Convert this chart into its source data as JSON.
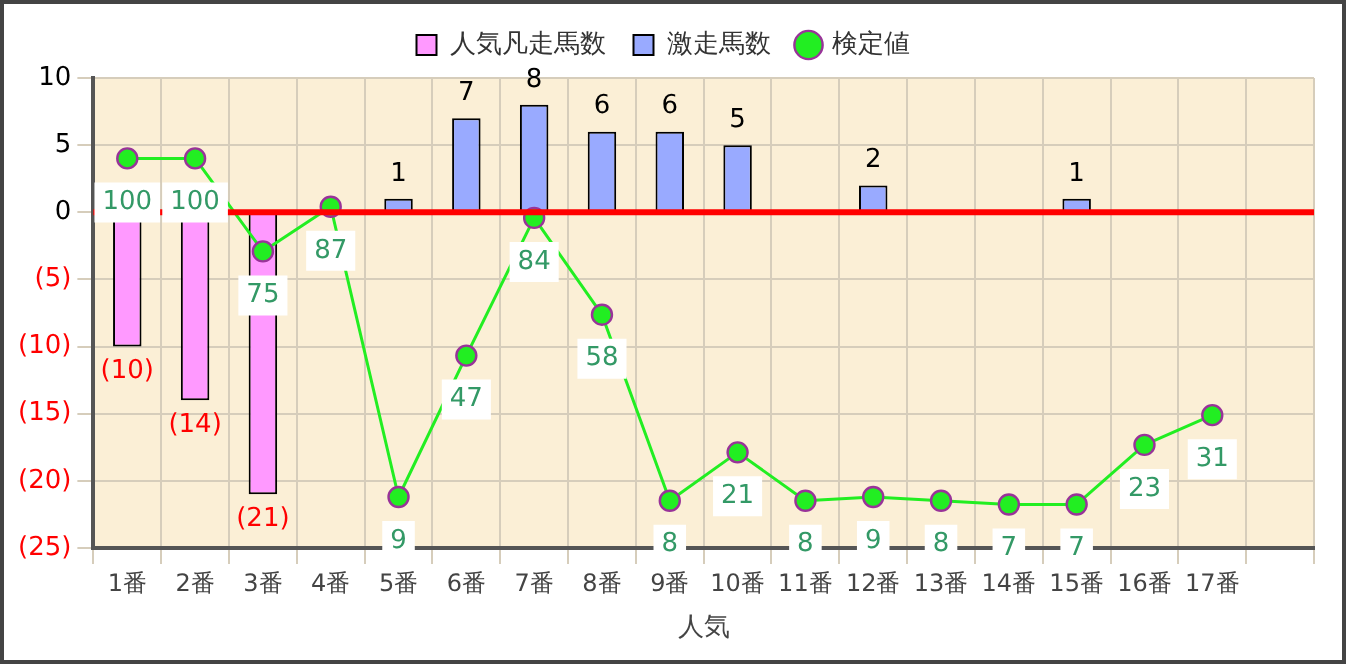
{
  "chart_data": {
    "type": "bar",
    "xlabel": "人気",
    "categories": [
      "1番",
      "2番",
      "3番",
      "4番",
      "5番",
      "6番",
      "7番",
      "8番",
      "9番",
      "10番",
      "11番",
      "12番",
      "13番",
      "14番",
      "15番",
      "16番",
      "17番",
      null
    ],
    "series": [
      {
        "name": "人気凡走馬数",
        "color": "#ff99ff",
        "values": [
          -10,
          -14,
          -21,
          null,
          null,
          null,
          null,
          null,
          null,
          null,
          null,
          null,
          null,
          null,
          null,
          null,
          null,
          null
        ],
        "value_labels": [
          "(10)",
          "(14)",
          "(21)",
          null,
          null,
          null,
          null,
          null,
          null,
          null,
          null,
          null,
          null,
          null,
          null,
          null,
          null,
          null
        ]
      },
      {
        "name": "激走馬数",
        "color": "#99aaff",
        "values": [
          null,
          null,
          null,
          null,
          1,
          7,
          8,
          6,
          6,
          5,
          null,
          2,
          null,
          null,
          1,
          null,
          null,
          null
        ],
        "value_labels": [
          null,
          null,
          null,
          null,
          "1",
          "7",
          "8",
          "6",
          "6",
          "5",
          null,
          "2",
          null,
          null,
          "1",
          null,
          null,
          null
        ]
      },
      {
        "name": "検定値",
        "type": "line",
        "axis": "y2",
        "color": "#22ee22",
        "marker": "circle",
        "values": [
          100,
          100,
          75,
          87,
          9,
          47,
          84,
          58,
          8,
          21,
          8,
          9,
          8,
          7,
          7,
          23,
          31,
          null
        ],
        "value_labels": [
          "100",
          "100",
          "75",
          "87",
          "9",
          "47",
          "84",
          "58",
          "8",
          "21",
          "8",
          "9",
          "8",
          "7",
          "7",
          "23",
          "31",
          null
        ]
      }
    ],
    "ylim": [
      -25,
      10
    ],
    "yticks": [
      {
        "value": -25,
        "label": "(25)"
      },
      {
        "value": -20,
        "label": "(20)"
      },
      {
        "value": -15,
        "label": "(15)"
      },
      {
        "value": -10,
        "label": "(10)"
      },
      {
        "value": -5,
        "label": "(5)"
      },
      0,
      5,
      10
    ],
    "y2lim": [
      -4.7,
      121.6
    ],
    "ref_lines": [
      {
        "axis": "y",
        "value": 0,
        "color": "#ff0000"
      }
    ],
    "grid": true,
    "legend": "top"
  }
}
